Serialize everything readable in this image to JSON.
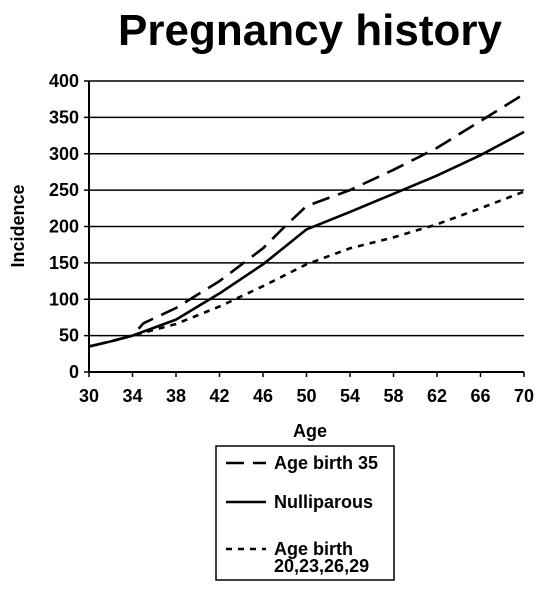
{
  "chart_data": {
    "type": "line",
    "title": "Pregnancy history",
    "xlabel": "Age",
    "ylabel": "Incidence",
    "xlim": [
      30,
      70
    ],
    "ylim": [
      0,
      400
    ],
    "xticks": [
      30,
      34,
      38,
      42,
      46,
      50,
      54,
      58,
      62,
      66,
      70
    ],
    "yticks": [
      0,
      50,
      100,
      150,
      200,
      250,
      300,
      350,
      400
    ],
    "grid": "horizontal",
    "legend_position": "below",
    "series": [
      {
        "name": "Age birth 35",
        "style": "long-dash",
        "color": "#000000",
        "points": [
          [
            30,
            35
          ],
          [
            32,
            42
          ],
          [
            34,
            50
          ],
          [
            35,
            67
          ],
          [
            38,
            88
          ],
          [
            42,
            125
          ],
          [
            46,
            170
          ],
          [
            48,
            200
          ],
          [
            50,
            228
          ],
          [
            54,
            250
          ],
          [
            58,
            278
          ],
          [
            62,
            308
          ],
          [
            66,
            345
          ],
          [
            70,
            382
          ]
        ]
      },
      {
        "name": "Nulliparous",
        "style": "solid",
        "color": "#000000",
        "points": [
          [
            30,
            35
          ],
          [
            32,
            42
          ],
          [
            34,
            50
          ],
          [
            38,
            72
          ],
          [
            42,
            108
          ],
          [
            46,
            148
          ],
          [
            48,
            172
          ],
          [
            50,
            196
          ],
          [
            54,
            220
          ],
          [
            58,
            245
          ],
          [
            62,
            270
          ],
          [
            66,
            298
          ],
          [
            70,
            330
          ]
        ]
      },
      {
        "name": "Age birth 20,23,26,29",
        "style": "short-dash",
        "color": "#000000",
        "points": [
          [
            30,
            35
          ],
          [
            32,
            42
          ],
          [
            34,
            50
          ],
          [
            38,
            66
          ],
          [
            42,
            90
          ],
          [
            46,
            118
          ],
          [
            48,
            133
          ],
          [
            50,
            148
          ],
          [
            54,
            170
          ],
          [
            58,
            185
          ],
          [
            62,
            203
          ],
          [
            66,
            225
          ],
          [
            70,
            248
          ]
        ]
      }
    ],
    "legend_entries": [
      "Age birth 35",
      "Nulliparous",
      "Age birth\n20,23,26,29"
    ]
  }
}
